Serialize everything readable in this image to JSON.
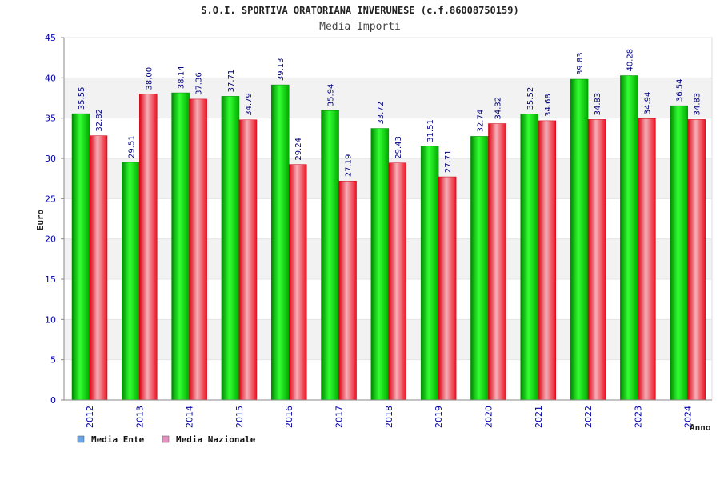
{
  "chart_data": {
    "type": "bar",
    "title": "S.O.I. SPORTIVA ORATORIANA INVERUNESE (c.f.86008750159)",
    "subtitle": "Media Importi",
    "xlabel": "Anno",
    "ylabel": "Euro",
    "ylim": [
      0,
      45
    ],
    "yticks": [
      0,
      5,
      10,
      15,
      20,
      25,
      30,
      35,
      40,
      45
    ],
    "grid": true,
    "legend_position": "bottom-left",
    "categories": [
      "2012",
      "2013",
      "2014",
      "2015",
      "2016",
      "2017",
      "2018",
      "2019",
      "2020",
      "2021",
      "2022",
      "2023",
      "2024"
    ],
    "series": [
      {
        "name": "Media Ente",
        "color": "#00cc00",
        "legend_color": "#6aa6e8",
        "values": [
          35.55,
          29.51,
          38.14,
          37.71,
          39.13,
          35.94,
          33.72,
          31.51,
          32.74,
          35.52,
          39.83,
          40.28,
          36.54
        ],
        "labels": [
          "35.55",
          "29.51",
          "38.14",
          "37.71",
          "39.13",
          "35.94",
          "33.72",
          "31.51",
          "32.74",
          "35.52",
          "39.83",
          "40.28",
          "36.54"
        ]
      },
      {
        "name": "Media Nazionale",
        "color": "#ee1122",
        "legend_color": "#e890c0",
        "values": [
          32.82,
          38.0,
          37.36,
          34.79,
          29.24,
          27.19,
          29.43,
          27.71,
          34.32,
          34.68,
          34.83,
          34.94,
          34.83
        ],
        "labels": [
          "32.82",
          "38.00",
          "37.36",
          "34.79",
          "29.24",
          "27.19",
          "29.43",
          "27.71",
          "34.32",
          "34.68",
          "34.83",
          "34.94",
          "34.83"
        ]
      }
    ]
  }
}
